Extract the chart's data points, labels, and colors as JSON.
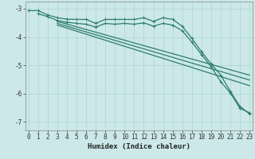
{
  "line1_x": [
    0,
    1,
    2,
    3,
    4,
    5,
    6,
    7,
    8,
    9,
    10,
    11,
    12,
    13,
    14,
    15,
    16,
    17,
    18,
    19,
    20,
    21,
    22,
    23
  ],
  "line1_y": [
    -3.07,
    -3.07,
    -3.22,
    -3.32,
    -3.37,
    -3.38,
    -3.38,
    -3.52,
    -3.38,
    -3.38,
    -3.38,
    -3.38,
    -3.32,
    -3.45,
    -3.32,
    -3.38,
    -3.62,
    -4.05,
    -4.52,
    -4.95,
    -5.35,
    -5.92,
    -6.45,
    -6.72
  ],
  "line2_x": [
    1,
    2,
    3,
    4,
    5,
    6,
    7,
    8,
    9,
    10,
    11,
    12,
    13,
    14,
    15,
    16,
    17,
    18,
    19,
    20,
    21,
    22,
    23
  ],
  "line2_y": [
    -3.18,
    -3.28,
    -3.42,
    -3.48,
    -3.52,
    -3.55,
    -3.65,
    -3.52,
    -3.55,
    -3.52,
    -3.55,
    -3.5,
    -3.62,
    -3.52,
    -3.58,
    -3.78,
    -4.18,
    -4.62,
    -5.05,
    -5.58,
    -5.98,
    -6.52,
    -6.68
  ],
  "line3_x": [
    3,
    23
  ],
  "line3_y": [
    -3.45,
    -5.35
  ],
  "line4_x": [
    3,
    23
  ],
  "line4_y": [
    -3.52,
    -5.52
  ],
  "line5_x": [
    3,
    23
  ],
  "line5_y": [
    -3.58,
    -5.72
  ],
  "line_color": "#2d7d6e",
  "bg_color": "#cce8e8",
  "grid_color": "#afd4d4",
  "xlabel": "Humidex (Indice chaleur)",
  "xlabel_fontsize": 6.5,
  "tick_fontsize": 5.5,
  "ylim": [
    -7.3,
    -2.75
  ],
  "xlim": [
    -0.3,
    23.3
  ],
  "yticks": [
    -7,
    -6,
    -5,
    -4,
    -3
  ],
  "xticks": [
    0,
    1,
    2,
    3,
    4,
    5,
    6,
    7,
    8,
    9,
    10,
    11,
    12,
    13,
    14,
    15,
    16,
    17,
    18,
    19,
    20,
    21,
    22,
    23
  ]
}
